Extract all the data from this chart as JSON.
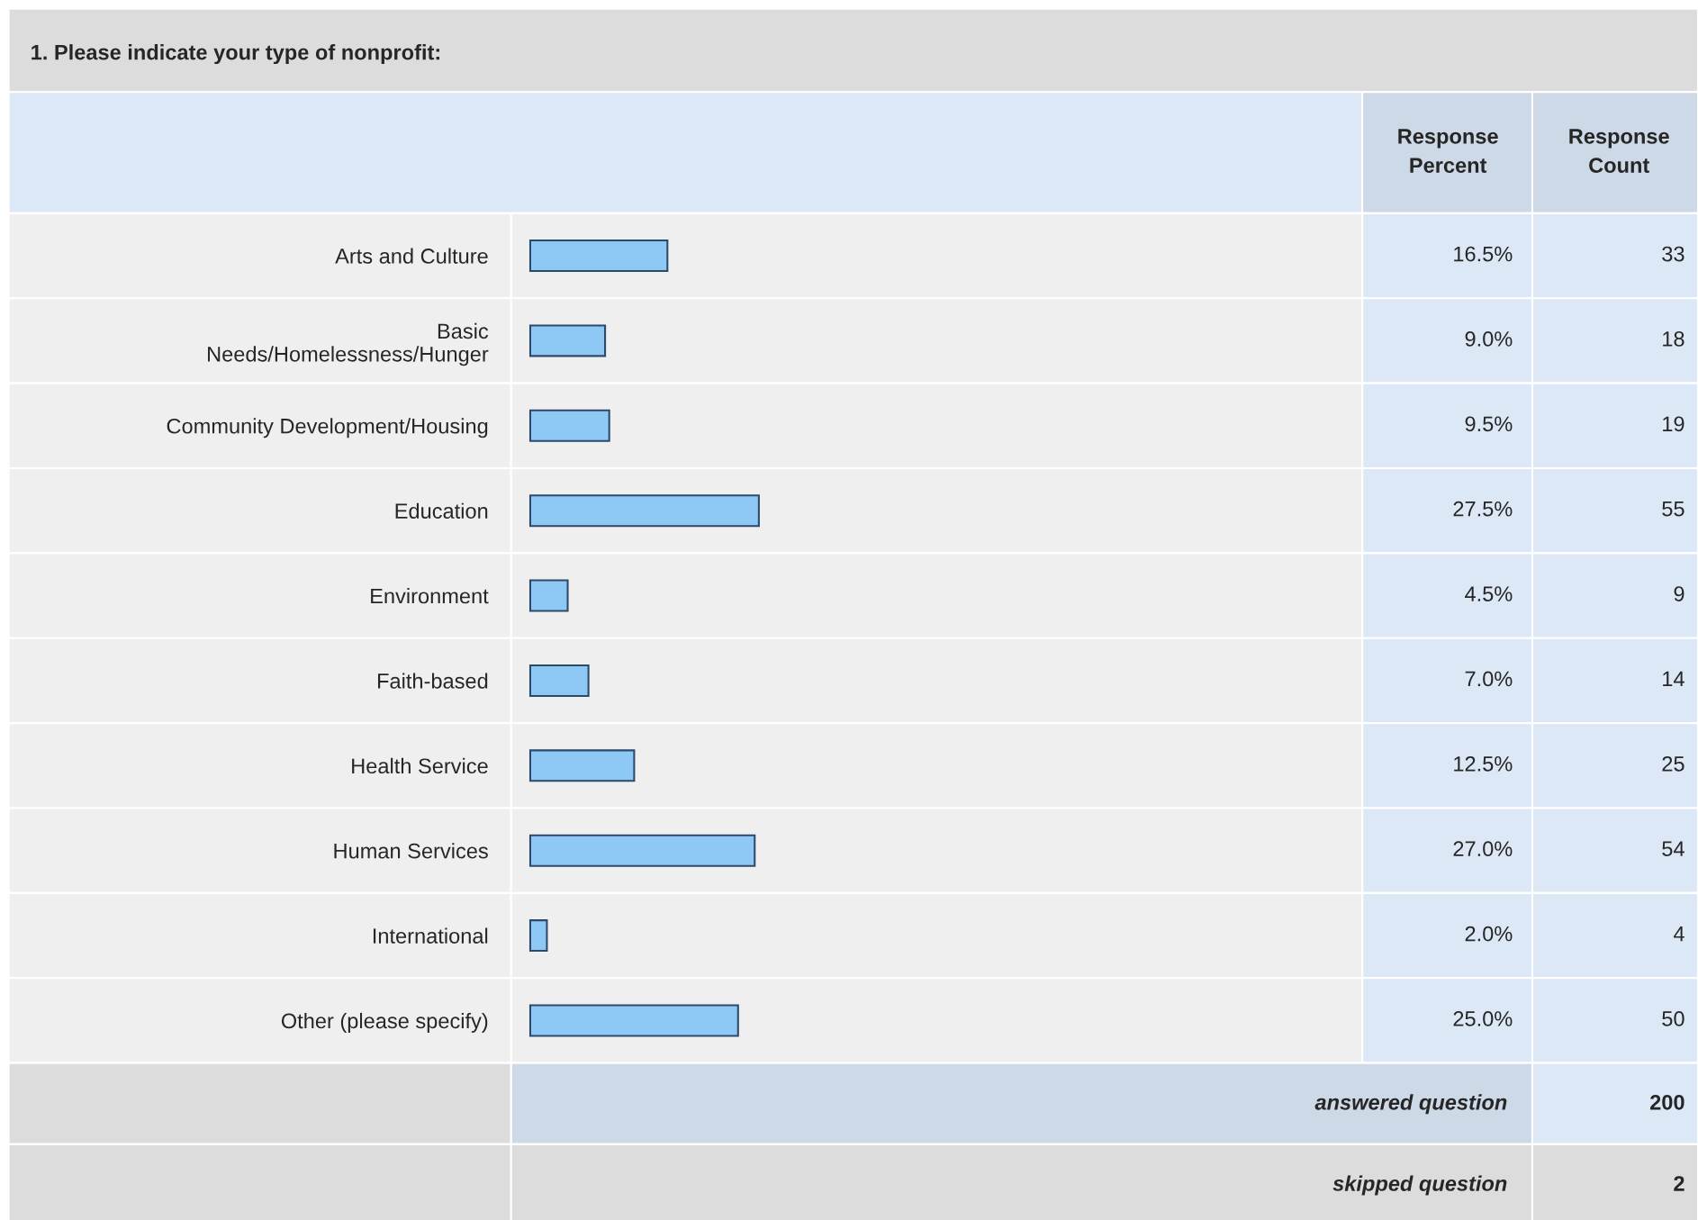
{
  "chart_data": {
    "type": "bar",
    "orientation": "horizontal",
    "title": "1. Please indicate your type of nonprofit:",
    "categories": [
      "Arts and Culture",
      "Basic Needs/Homelessness/Hunger",
      "Community Development/Housing",
      "Education",
      "Environment",
      "Faith-based",
      "Health Service",
      "Human Services",
      "International",
      "Other (please specify)"
    ],
    "values": [
      16.5,
      9.0,
      9.5,
      27.5,
      4.5,
      7.0,
      12.5,
      27.0,
      2.0,
      25.0
    ],
    "value_labels": [
      "16.5%",
      "9.0%",
      "9.5%",
      "27.5%",
      "4.5%",
      "7.0%",
      "12.5%",
      "27.0%",
      "2.0%",
      "25.0%"
    ],
    "color": "#8ec9f5",
    "tick_labels": "y",
    "annotations": [
      "Response\nPercent",
      "Response\nCount",
      "answered question",
      "200",
      "skipped question",
      "2",
      "33",
      "18",
      "19",
      "55",
      "9",
      "14",
      "25",
      "54",
      "4",
      "50"
    ]
  }
}
